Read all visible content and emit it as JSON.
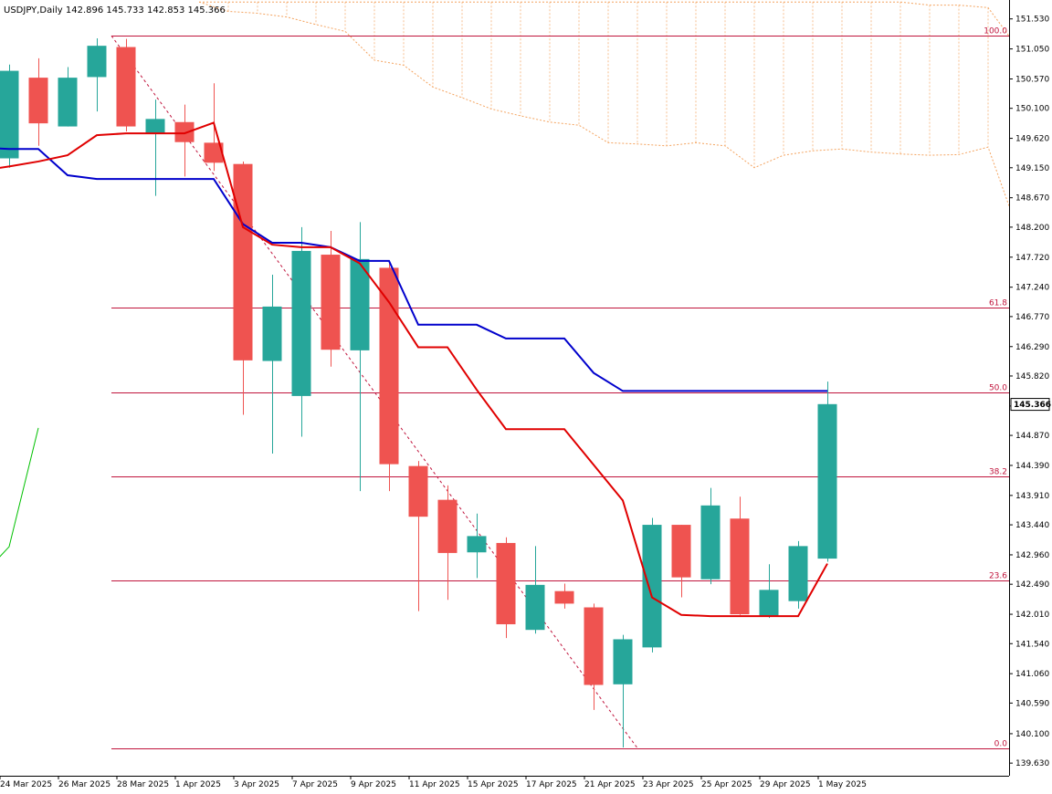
{
  "chart_data": {
    "type": "candlestick",
    "symbol_header": "USDJPY,Daily  142.896 145.733 142.853 145.366",
    "current_price": 145.366,
    "current_price_label": "145.366",
    "ylim": [
      139.53,
      151.73
    ],
    "y_ticks": [
      "151.530",
      "151.050",
      "150.570",
      "150.100",
      "149.620",
      "149.150",
      "148.670",
      "148.200",
      "147.720",
      "147.240",
      "146.770",
      "146.290",
      "145.820",
      "145.340",
      "144.870",
      "144.390",
      "143.910",
      "143.440",
      "142.960",
      "142.490",
      "142.010",
      "141.540",
      "141.060",
      "140.590",
      "140.100",
      "139.630"
    ],
    "x_labels": [
      "24 Mar 2025",
      "26 Mar 2025",
      "28 Mar 2025",
      "1 Apr 2025",
      "3 Apr 2025",
      "7 Apr 2025",
      "9 Apr 2025",
      "11 Apr 2025",
      "15 Apr 2025",
      "17 Apr 2025",
      "21 Apr 2025",
      "23 Apr 2025",
      "25 Apr 2025",
      "29 Apr 2025",
      "1 May 2025"
    ],
    "colors": {
      "bull": "#26a69a",
      "bear": "#ef5350",
      "tenkan": "#e00000",
      "kijun": "#0000cc",
      "chikou": "#00c000",
      "fib": "#c0143c",
      "cloud": "#f4a460",
      "price_tag_bg": "#ffffff"
    },
    "candles": [
      {
        "o": 149.3,
        "h": 150.8,
        "l": 149.15,
        "c": 150.7
      },
      {
        "o": 150.59,
        "h": 150.9,
        "l": 149.5,
        "c": 149.86
      },
      {
        "o": 149.81,
        "h": 150.76,
        "l": 149.81,
        "c": 150.59
      },
      {
        "o": 150.6,
        "h": 151.22,
        "l": 150.05,
        "c": 151.1
      },
      {
        "o": 151.08,
        "h": 151.21,
        "l": 149.73,
        "c": 149.81
      },
      {
        "o": 149.7,
        "h": 150.24,
        "l": 148.7,
        "c": 149.93
      },
      {
        "o": 149.88,
        "h": 150.16,
        "l": 149.01,
        "c": 149.56
      },
      {
        "o": 149.55,
        "h": 150.5,
        "l": 149.1,
        "c": 149.23
      },
      {
        "o": 149.21,
        "h": 149.25,
        "l": 145.2,
        "c": 146.07
      },
      {
        "o": 146.06,
        "h": 147.44,
        "l": 144.58,
        "c": 146.93
      },
      {
        "o": 145.5,
        "h": 148.2,
        "l": 144.85,
        "c": 147.82
      },
      {
        "o": 147.76,
        "h": 148.14,
        "l": 145.97,
        "c": 146.24
      },
      {
        "o": 146.23,
        "h": 148.28,
        "l": 143.98,
        "c": 147.69
      },
      {
        "o": 147.55,
        "h": 147.62,
        "l": 143.98,
        "c": 144.41
      },
      {
        "o": 144.38,
        "h": 144.46,
        "l": 142.06,
        "c": 143.57
      },
      {
        "o": 143.84,
        "h": 144.07,
        "l": 142.24,
        "c": 142.99
      },
      {
        "o": 143.0,
        "h": 143.62,
        "l": 142.59,
        "c": 143.26
      },
      {
        "o": 143.15,
        "h": 143.24,
        "l": 141.63,
        "c": 141.85
      },
      {
        "o": 141.76,
        "h": 143.1,
        "l": 141.7,
        "c": 142.48
      },
      {
        "o": 142.38,
        "h": 142.5,
        "l": 142.1,
        "c": 142.18
      },
      {
        "o": 142.12,
        "h": 142.18,
        "l": 140.48,
        "c": 140.88
      },
      {
        "o": 140.89,
        "h": 141.68,
        "l": 139.88,
        "c": 141.61
      },
      {
        "o": 141.48,
        "h": 143.55,
        "l": 141.4,
        "c": 143.44
      },
      {
        "o": 143.44,
        "h": 143.44,
        "l": 142.28,
        "c": 142.6
      },
      {
        "o": 142.57,
        "h": 144.03,
        "l": 142.49,
        "c": 143.75
      },
      {
        "o": 143.54,
        "h": 143.89,
        "l": 142.0,
        "c": 142.01
      },
      {
        "o": 141.97,
        "h": 142.81,
        "l": 141.95,
        "c": 142.4
      },
      {
        "o": 142.22,
        "h": 143.18,
        "l": 142.1,
        "c": 143.1
      },
      {
        "o": 142.9,
        "h": 145.73,
        "l": 142.85,
        "c": 145.37
      }
    ],
    "tenkan": [
      [
        -1,
        149.1
      ],
      [
        0,
        149.17
      ],
      [
        1,
        149.25
      ],
      [
        2,
        149.35
      ],
      [
        3,
        149.67
      ],
      [
        4,
        149.7
      ],
      [
        5,
        149.7
      ],
      [
        6,
        149.7
      ],
      [
        7,
        149.87
      ],
      [
        8,
        148.2
      ],
      [
        9,
        147.92
      ],
      [
        10,
        147.88
      ],
      [
        11,
        147.88
      ],
      [
        12,
        147.62
      ],
      [
        13,
        147.0
      ],
      [
        14,
        146.28
      ],
      [
        15,
        146.28
      ],
      [
        16,
        145.6
      ],
      [
        17,
        144.97
      ],
      [
        18,
        144.97
      ],
      [
        19,
        144.97
      ],
      [
        20,
        144.4
      ],
      [
        21,
        143.83
      ],
      [
        22,
        142.28
      ],
      [
        23,
        142.0
      ],
      [
        24,
        141.98
      ],
      [
        25,
        141.98
      ],
      [
        26,
        141.98
      ],
      [
        27,
        141.98
      ],
      [
        28,
        142.82
      ]
    ],
    "kijun": [
      [
        -1,
        149.47
      ],
      [
        0,
        149.45
      ],
      [
        1,
        149.45
      ],
      [
        2,
        149.03
      ],
      [
        3,
        148.97
      ],
      [
        4,
        148.97
      ],
      [
        5,
        148.97
      ],
      [
        6,
        148.97
      ],
      [
        7,
        148.97
      ],
      [
        8,
        148.25
      ],
      [
        9,
        147.95
      ],
      [
        10,
        147.95
      ],
      [
        11,
        147.88
      ],
      [
        12,
        147.66
      ],
      [
        13,
        147.66
      ],
      [
        14,
        146.64
      ],
      [
        15,
        146.64
      ],
      [
        16,
        146.64
      ],
      [
        17,
        146.42
      ],
      [
        18,
        146.42
      ],
      [
        19,
        146.42
      ],
      [
        20,
        145.87
      ],
      [
        21,
        145.58
      ],
      [
        22,
        145.58
      ],
      [
        23,
        145.58
      ],
      [
        24,
        145.58
      ],
      [
        25,
        145.58
      ],
      [
        26,
        145.58
      ],
      [
        27,
        145.58
      ],
      [
        28,
        145.58
      ]
    ],
    "chikou": [
      [
        -1,
        142.59
      ],
      [
        0,
        143.09
      ],
      [
        1,
        144.99
      ]
    ],
    "cloud_span_a": [
      [
        6.5,
        151.8
      ],
      [
        7.5,
        151.65
      ],
      [
        8.5,
        151.62
      ],
      [
        9.5,
        151.56
      ],
      [
        10.5,
        151.44
      ],
      [
        11.5,
        151.33
      ],
      [
        12.5,
        150.87
      ],
      [
        13.5,
        150.79
      ],
      [
        14.5,
        150.44
      ],
      [
        15.5,
        150.27
      ],
      [
        16.5,
        150.09
      ],
      [
        17.5,
        149.98
      ],
      [
        18.5,
        149.88
      ],
      [
        19.5,
        149.83
      ],
      [
        20.5,
        149.55
      ],
      [
        21.5,
        149.53
      ],
      [
        22.5,
        149.5
      ],
      [
        23.5,
        149.55
      ],
      [
        24.5,
        149.5
      ],
      [
        25.5,
        149.15
      ],
      [
        26.5,
        149.35
      ],
      [
        27.5,
        149.42
      ],
      [
        28.5,
        149.45
      ],
      [
        29.5,
        149.4
      ],
      [
        30.5,
        149.37
      ],
      [
        31.5,
        149.35
      ],
      [
        32.5,
        149.36
      ],
      [
        33.5,
        149.48
      ],
      [
        34.5,
        148.17
      ]
    ],
    "cloud_span_b": [
      [
        6.5,
        151.8
      ],
      [
        30.5,
        151.8
      ],
      [
        31.5,
        151.75
      ],
      [
        32.5,
        151.75
      ],
      [
        33.5,
        151.71
      ],
      [
        34.5,
        151.08
      ]
    ],
    "zigzag": [
      [
        3.5,
        151.26
      ],
      [
        21.5,
        139.87
      ]
    ],
    "fib_levels": [
      {
        "level": 100.0,
        "label": "100.0",
        "price": 151.26
      },
      {
        "level": 61.8,
        "label": "61.8",
        "price": 146.91
      },
      {
        "level": 50.0,
        "label": "50.0",
        "price": 145.56
      },
      {
        "level": 38.2,
        "label": "38.2",
        "price": 144.22
      },
      {
        "level": 23.6,
        "label": "23.6",
        "price": 142.55
      },
      {
        "level": 0.0,
        "label": "0.0",
        "price": 139.87
      }
    ]
  }
}
